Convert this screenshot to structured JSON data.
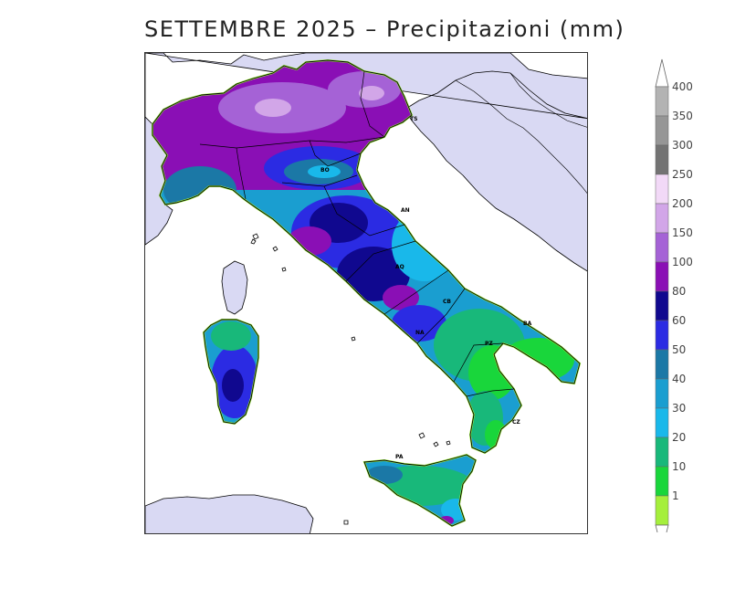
{
  "title": "SETTEMBRE 2025 – Precipitazioni (mm)",
  "legend": {
    "unit": "mm",
    "classes": [
      {
        "label": "400",
        "color": "#b3b3b3"
      },
      {
        "label": "350",
        "color": "#969696"
      },
      {
        "label": "300",
        "color": "#737373"
      },
      {
        "label": "250",
        "color": "#f2d9f7"
      },
      {
        "label": "200",
        "color": "#d2a6e8"
      },
      {
        "label": "150",
        "color": "#a562d6"
      },
      {
        "label": "100",
        "color": "#8a0fb5"
      },
      {
        "label": "80",
        "color": "#10088f"
      },
      {
        "label": "60",
        "color": "#2b2be3"
      },
      {
        "label": "50",
        "color": "#1b78a6"
      },
      {
        "label": "40",
        "color": "#1a9ed0"
      },
      {
        "label": "30",
        "color": "#19b8ea"
      },
      {
        "label": "20",
        "color": "#18b87a"
      },
      {
        "label": "10",
        "color": "#19d63b"
      },
      {
        "label": "1",
        "color": "#a5ef3c"
      }
    ]
  },
  "region_codes": [
    "TS",
    "BO",
    "AN",
    "AQ",
    "CB",
    "NA",
    "BA",
    "PZ",
    "CZ",
    "PA"
  ],
  "colors": {
    "land_background": "#d9d9f3",
    "sea": "#ffffff",
    "outline": "#000000"
  }
}
